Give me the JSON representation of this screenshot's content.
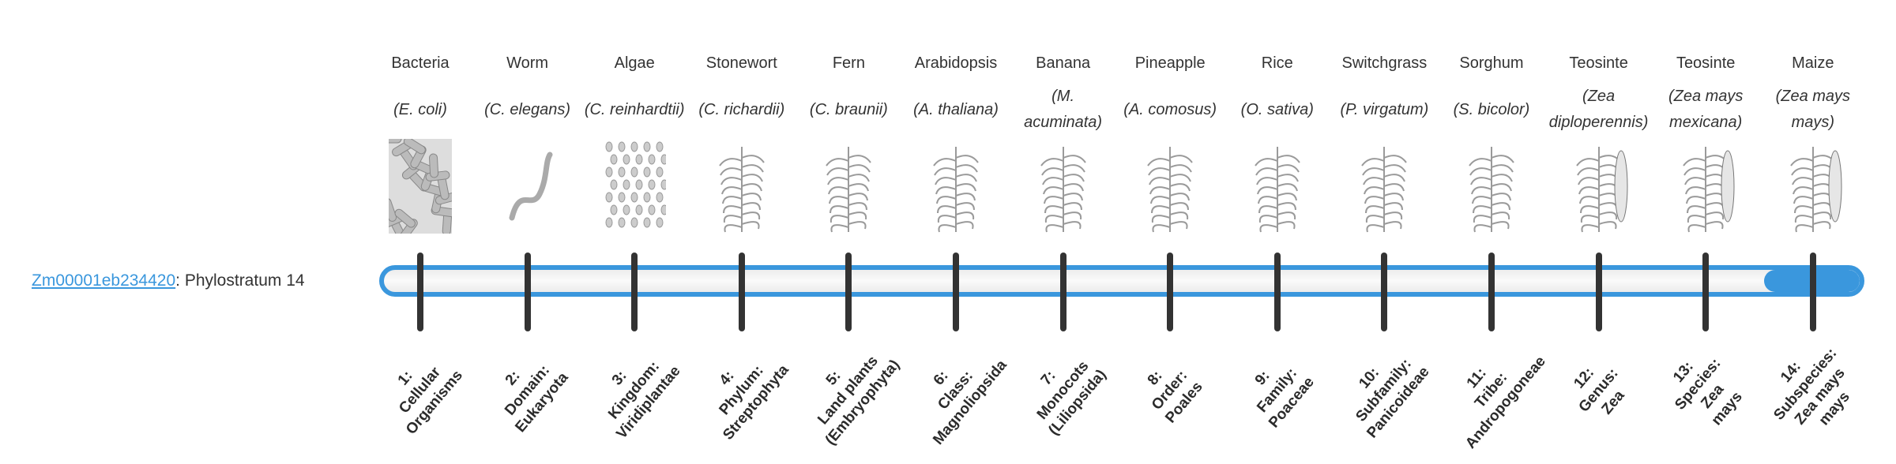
{
  "gene": {
    "id": "Zm00001eb234420",
    "suffix": ": Phylostratum 14"
  },
  "progress": {
    "current": 14,
    "total": 14,
    "color": "#3a97dd"
  },
  "strata": [
    {
      "common": "Bacteria",
      "sci": "(E. coli)",
      "icon": "bacteria-icon",
      "label": [
        "1:",
        "Cellular",
        "Organisms"
      ]
    },
    {
      "common": "Worm",
      "sci": "(C. elegans)",
      "icon": "worm-icon",
      "label": [
        "2:",
        "Domain:",
        "Eukaryota"
      ]
    },
    {
      "common": "Algae",
      "sci": "(C. reinhardtii)",
      "icon": "algae-icon",
      "label": [
        "3:",
        "Kingdom:",
        "Viridiplantae"
      ]
    },
    {
      "common": "Stonewort",
      "sci": "(C. richardii)",
      "icon": "stonewort-icon",
      "label": [
        "4:",
        "Phylum:",
        "Streptophyta"
      ]
    },
    {
      "common": "Fern",
      "sci": "(C. braunii)",
      "icon": "fern-icon",
      "label": [
        "5:",
        "Land plants",
        "(Embryophyta)"
      ]
    },
    {
      "common": "Arabidopsis",
      "sci": "(A. thaliana)",
      "icon": "arabidopsis-icon",
      "label": [
        "6:",
        "Class:",
        "Magnoliopsida"
      ]
    },
    {
      "common": "Banana",
      "sci": "(M. acuminata)",
      "icon": "banana-icon",
      "label": [
        "7:",
        "Monocots",
        "(Liliopsida)"
      ]
    },
    {
      "common": "Pineapple",
      "sci": "(A. comosus)",
      "icon": "pineapple-icon",
      "label": [
        "8:",
        "Order:",
        "Poales"
      ]
    },
    {
      "common": "Rice",
      "sci": "(O. sativa)",
      "icon": "rice-icon",
      "label": [
        "9:",
        "Family:",
        "Poaceae"
      ]
    },
    {
      "common": "Switchgrass",
      "sci": "(P. virgatum)",
      "icon": "switchgrass-icon",
      "label": [
        "10:",
        "Subfamily:",
        "Panicoideae"
      ]
    },
    {
      "common": "Sorghum",
      "sci": "(S. bicolor)",
      "icon": "sorghum-icon",
      "label": [
        "11:",
        "Tribe:",
        "Andropogoneae"
      ]
    },
    {
      "common": "Teosinte",
      "sci": "(Zea diploperennis)",
      "icon": "teosinte-icon",
      "label": [
        "12:",
        "Genus:",
        "Zea"
      ]
    },
    {
      "common": "Teosinte",
      "sci": "(Zea mays mexicana)",
      "icon": "teosinte-icon",
      "label": [
        "13:",
        "Species:",
        "Zea",
        "mays"
      ]
    },
    {
      "common": "Maize",
      "sci": "(Zea mays mays)",
      "icon": "maize-icon",
      "label": [
        "14:",
        "Subspecies:",
        "Zea mays",
        "mays"
      ]
    }
  ]
}
